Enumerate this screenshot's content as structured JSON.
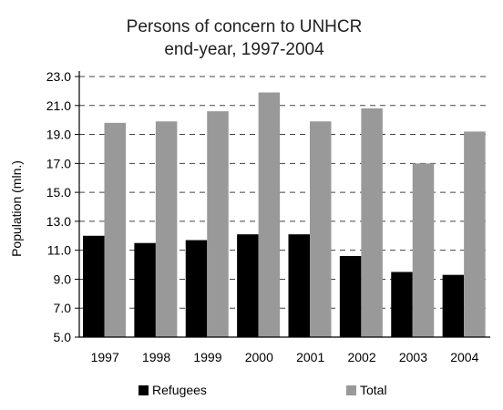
{
  "chart_data": {
    "type": "bar",
    "title": "Persons of concern to UNHCR",
    "subtitle": "end-year, 1997-2004",
    "ylabel": "Population (mln.)",
    "xlabel": "",
    "categories": [
      "1997",
      "1998",
      "1999",
      "2000",
      "2001",
      "2002",
      "2003",
      "2004"
    ],
    "series": [
      {
        "name": "Refugees",
        "values": [
          12.0,
          11.5,
          11.7,
          12.1,
          12.1,
          10.6,
          9.5,
          9.3
        ],
        "color": "#000000"
      },
      {
        "name": "Total",
        "values": [
          19.8,
          19.9,
          20.6,
          21.9,
          19.9,
          20.8,
          17.0,
          19.2
        ],
        "color": "#999999"
      }
    ],
    "ylim": [
      5.0,
      23.0
    ],
    "yticks": [
      "5.0",
      "7.0",
      "9.0",
      "11.0",
      "13.0",
      "15.0",
      "17.0",
      "19.0",
      "21.0",
      "23.0"
    ],
    "grid": true,
    "legend_position": "bottom"
  }
}
